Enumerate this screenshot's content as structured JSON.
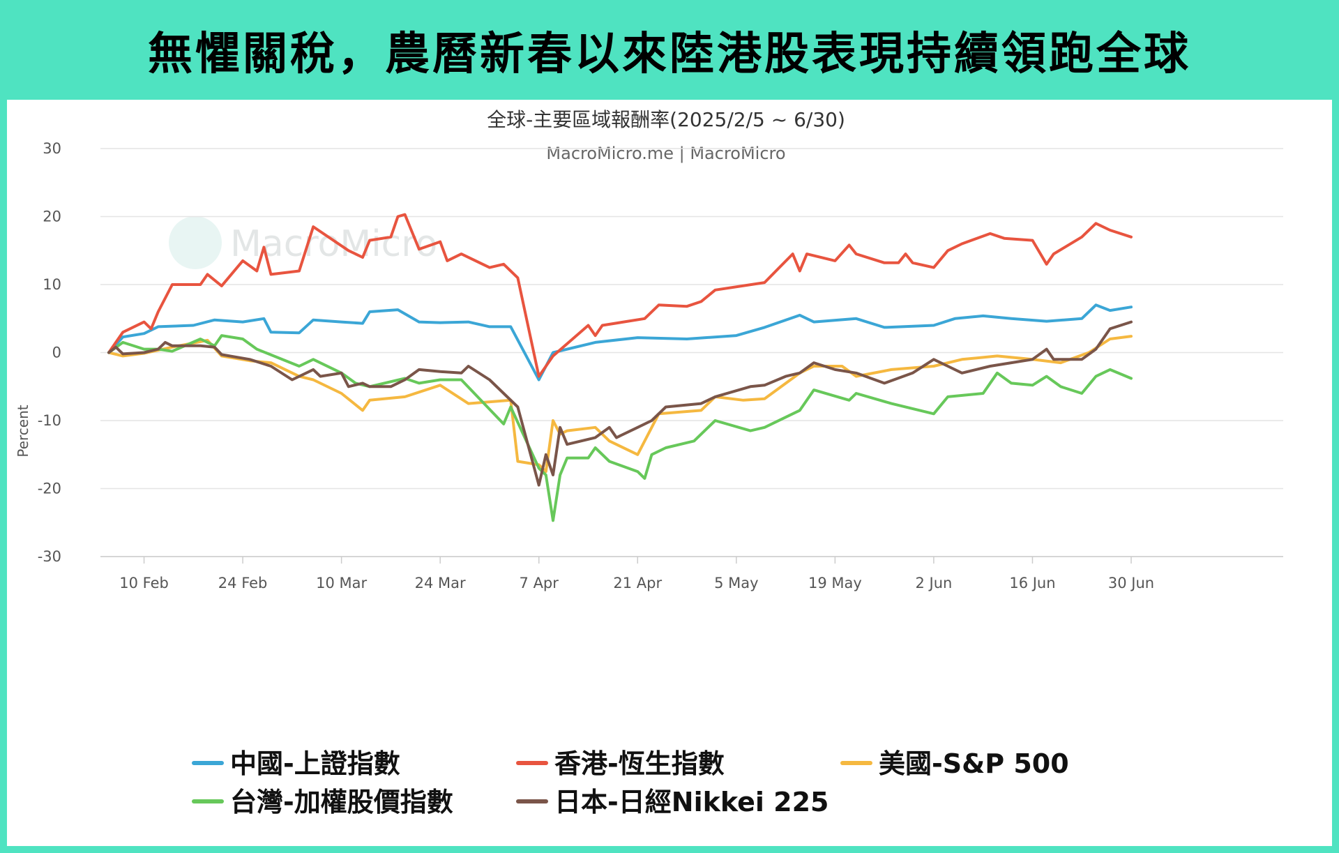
{
  "banner": {
    "title": "無懼關稅，農曆新春以來陸港股表現持續領跑全球"
  },
  "watermark": "MacroMicro",
  "chart_data": {
    "type": "line",
    "title": "全球-主要區域報酬率(2025/2/5 ~ 6/30)",
    "subtitle": "MacroMicro.me | MacroMicro",
    "ylabel": "Percent",
    "xlabel": "",
    "ylim": [
      -30,
      30
    ],
    "yticks": [
      30,
      20,
      10,
      0,
      -10,
      -20,
      -30
    ],
    "xlim": [
      "2025-02-05",
      "2025-06-30"
    ],
    "xticks": [
      {
        "date": "2025-02-10",
        "label": "10 Feb"
      },
      {
        "date": "2025-02-24",
        "label": "24 Feb"
      },
      {
        "date": "2025-03-10",
        "label": "10 Mar"
      },
      {
        "date": "2025-03-24",
        "label": "24 Mar"
      },
      {
        "date": "2025-04-07",
        "label": "7 Apr"
      },
      {
        "date": "2025-04-21",
        "label": "21 Apr"
      },
      {
        "date": "2025-05-05",
        "label": "5 May"
      },
      {
        "date": "2025-05-19",
        "label": "19 May"
      },
      {
        "date": "2025-06-02",
        "label": "2 Jun"
      },
      {
        "date": "2025-06-16",
        "label": "16 Jun"
      },
      {
        "date": "2025-06-30",
        "label": "30 Jun"
      }
    ],
    "grid": true,
    "legend_position": "bottom",
    "series": [
      {
        "name": "中國-上證指數",
        "color": "#3ba6d6",
        "points": [
          [
            "2025-02-05",
            0
          ],
          [
            "2025-02-07",
            2.3
          ],
          [
            "2025-02-10",
            2.8
          ],
          [
            "2025-02-12",
            3.8
          ],
          [
            "2025-02-17",
            4
          ],
          [
            "2025-02-20",
            4.8
          ],
          [
            "2025-02-24",
            4.5
          ],
          [
            "2025-02-27",
            5
          ],
          [
            "2025-02-28",
            3
          ],
          [
            "2025-03-04",
            2.9
          ],
          [
            "2025-03-06",
            4.8
          ],
          [
            "2025-03-10",
            4.5
          ],
          [
            "2025-03-13",
            4.3
          ],
          [
            "2025-03-14",
            6
          ],
          [
            "2025-03-18",
            6.3
          ],
          [
            "2025-03-21",
            4.5
          ],
          [
            "2025-03-24",
            4.4
          ],
          [
            "2025-03-28",
            4.5
          ],
          [
            "2025-03-31",
            3.8
          ],
          [
            "2025-04-03",
            3.8
          ],
          [
            "2025-04-07",
            -4
          ],
          [
            "2025-04-09",
            0
          ],
          [
            "2025-04-15",
            1.5
          ],
          [
            "2025-04-21",
            2.2
          ],
          [
            "2025-04-28",
            2
          ],
          [
            "2025-05-05",
            2.5
          ],
          [
            "2025-05-09",
            3.7
          ],
          [
            "2025-05-14",
            5.5
          ],
          [
            "2025-05-16",
            4.5
          ],
          [
            "2025-05-22",
            5
          ],
          [
            "2025-05-26",
            3.7
          ],
          [
            "2025-06-02",
            4
          ],
          [
            "2025-06-05",
            5
          ],
          [
            "2025-06-09",
            5.4
          ],
          [
            "2025-06-13",
            5
          ],
          [
            "2025-06-18",
            4.6
          ],
          [
            "2025-06-23",
            5
          ],
          [
            "2025-06-25",
            7
          ],
          [
            "2025-06-27",
            6.2
          ],
          [
            "2025-06-30",
            6.7
          ]
        ]
      },
      {
        "name": "香港-恆生指數",
        "color": "#e8543f",
        "points": [
          [
            "2025-02-05",
            0
          ],
          [
            "2025-02-07",
            3
          ],
          [
            "2025-02-10",
            4.5
          ],
          [
            "2025-02-11",
            3.5
          ],
          [
            "2025-02-12",
            6
          ],
          [
            "2025-02-14",
            10
          ],
          [
            "2025-02-18",
            10
          ],
          [
            "2025-02-19",
            11.5
          ],
          [
            "2025-02-21",
            9.8
          ],
          [
            "2025-02-24",
            13.5
          ],
          [
            "2025-02-26",
            12
          ],
          [
            "2025-02-27",
            15.5
          ],
          [
            "2025-02-28",
            11.5
          ],
          [
            "2025-03-04",
            12
          ],
          [
            "2025-03-06",
            18.5
          ],
          [
            "2025-03-11",
            15
          ],
          [
            "2025-03-13",
            14
          ],
          [
            "2025-03-14",
            16.5
          ],
          [
            "2025-03-17",
            17
          ],
          [
            "2025-03-18",
            20
          ],
          [
            "2025-03-19",
            20.3
          ],
          [
            "2025-03-21",
            15.2
          ],
          [
            "2025-03-24",
            16.3
          ],
          [
            "2025-03-25",
            13.5
          ],
          [
            "2025-03-27",
            14.5
          ],
          [
            "2025-03-31",
            12.5
          ],
          [
            "2025-04-02",
            13
          ],
          [
            "2025-04-04",
            11
          ],
          [
            "2025-04-07",
            -3.5
          ],
          [
            "2025-04-09",
            -0.5
          ],
          [
            "2025-04-14",
            4
          ],
          [
            "2025-04-15",
            2.5
          ],
          [
            "2025-04-16",
            4
          ],
          [
            "2025-04-22",
            5
          ],
          [
            "2025-04-24",
            7
          ],
          [
            "2025-04-28",
            6.8
          ],
          [
            "2025-04-30",
            7.5
          ],
          [
            "2025-05-02",
            9.2
          ],
          [
            "2025-05-09",
            10.3
          ],
          [
            "2025-05-13",
            14.5
          ],
          [
            "2025-05-14",
            12
          ],
          [
            "2025-05-15",
            14.5
          ],
          [
            "2025-05-19",
            13.5
          ],
          [
            "2025-05-21",
            15.8
          ],
          [
            "2025-05-22",
            14.5
          ],
          [
            "2025-05-26",
            13.2
          ],
          [
            "2025-05-28",
            13.2
          ],
          [
            "2025-05-29",
            14.5
          ],
          [
            "2025-05-30",
            13.2
          ],
          [
            "2025-06-02",
            12.5
          ],
          [
            "2025-06-04",
            15
          ],
          [
            "2025-06-06",
            16
          ],
          [
            "2025-06-10",
            17.5
          ],
          [
            "2025-06-12",
            16.8
          ],
          [
            "2025-06-16",
            16.5
          ],
          [
            "2025-06-18",
            13
          ],
          [
            "2025-06-19",
            14.5
          ],
          [
            "2025-06-23",
            17
          ],
          [
            "2025-06-25",
            19
          ],
          [
            "2025-06-27",
            18
          ],
          [
            "2025-06-30",
            17
          ]
        ]
      },
      {
        "name": "美國-S&P 500",
        "color": "#f5b840",
        "points": [
          [
            "2025-02-05",
            0
          ],
          [
            "2025-02-07",
            -0.5
          ],
          [
            "2025-02-10",
            -0.1
          ],
          [
            "2025-02-14",
            0.8
          ],
          [
            "2025-02-19",
            1.8
          ],
          [
            "2025-02-21",
            -0.5
          ],
          [
            "2025-02-25",
            -1.2
          ],
          [
            "2025-02-28",
            -1.5
          ],
          [
            "2025-03-04",
            -3.5
          ],
          [
            "2025-03-06",
            -4
          ],
          [
            "2025-03-10",
            -6
          ],
          [
            "2025-03-13",
            -8.5
          ],
          [
            "2025-03-14",
            -7
          ],
          [
            "2025-03-19",
            -6.5
          ],
          [
            "2025-03-24",
            -4.8
          ],
          [
            "2025-03-28",
            -7.5
          ],
          [
            "2025-04-03",
            -7
          ],
          [
            "2025-04-04",
            -16
          ],
          [
            "2025-04-07",
            -16.5
          ],
          [
            "2025-04-08",
            -17.5
          ],
          [
            "2025-04-09",
            -10
          ],
          [
            "2025-04-10",
            -12
          ],
          [
            "2025-04-11",
            -11.5
          ],
          [
            "2025-04-15",
            -11
          ],
          [
            "2025-04-17",
            -13
          ],
          [
            "2025-04-21",
            -15
          ],
          [
            "2025-04-24",
            -9
          ],
          [
            "2025-04-30",
            -8.5
          ],
          [
            "2025-05-02",
            -6.5
          ],
          [
            "2025-05-06",
            -7
          ],
          [
            "2025-05-09",
            -6.8
          ],
          [
            "2025-05-14",
            -3
          ],
          [
            "2025-05-16",
            -2
          ],
          [
            "2025-05-20",
            -2
          ],
          [
            "2025-05-22",
            -3.5
          ],
          [
            "2025-05-27",
            -2.5
          ],
          [
            "2025-06-02",
            -2
          ],
          [
            "2025-06-06",
            -1
          ],
          [
            "2025-06-11",
            -0.5
          ],
          [
            "2025-06-16",
            -1
          ],
          [
            "2025-06-20",
            -1.5
          ],
          [
            "2025-06-24",
            0
          ],
          [
            "2025-06-27",
            2
          ],
          [
            "2025-06-30",
            2.4
          ]
        ]
      },
      {
        "name": "台灣-加權股價指數",
        "color": "#67c85a",
        "points": [
          [
            "2025-02-05",
            0
          ],
          [
            "2025-02-07",
            1.5
          ],
          [
            "2025-02-10",
            0.5
          ],
          [
            "2025-02-12",
            0.5
          ],
          [
            "2025-02-14",
            0.2
          ],
          [
            "2025-02-18",
            2
          ],
          [
            "2025-02-20",
            1
          ],
          [
            "2025-02-21",
            2.5
          ],
          [
            "2025-02-24",
            2
          ],
          [
            "2025-02-26",
            0.5
          ],
          [
            "2025-03-04",
            -2
          ],
          [
            "2025-03-06",
            -1
          ],
          [
            "2025-03-10",
            -3
          ],
          [
            "2025-03-12",
            -4.5
          ],
          [
            "2025-03-14",
            -5
          ],
          [
            "2025-03-19",
            -3.8
          ],
          [
            "2025-03-21",
            -4.5
          ],
          [
            "2025-03-24",
            -4
          ],
          [
            "2025-03-27",
            -4
          ],
          [
            "2025-04-02",
            -10.5
          ],
          [
            "2025-04-03",
            -8
          ],
          [
            "2025-04-07",
            -17
          ],
          [
            "2025-04-08",
            -18
          ],
          [
            "2025-04-09",
            -24.7
          ],
          [
            "2025-04-10",
            -18
          ],
          [
            "2025-04-11",
            -15.5
          ],
          [
            "2025-04-14",
            -15.5
          ],
          [
            "2025-04-15",
            -14
          ],
          [
            "2025-04-17",
            -16
          ],
          [
            "2025-04-21",
            -17.5
          ],
          [
            "2025-04-22",
            -18.5
          ],
          [
            "2025-04-23",
            -15
          ],
          [
            "2025-04-25",
            -14
          ],
          [
            "2025-04-29",
            -13
          ],
          [
            "2025-05-02",
            -10
          ],
          [
            "2025-05-07",
            -11.5
          ],
          [
            "2025-05-09",
            -11
          ],
          [
            "2025-05-14",
            -8.5
          ],
          [
            "2025-05-16",
            -5.5
          ],
          [
            "2025-05-21",
            -7
          ],
          [
            "2025-05-22",
            -6
          ],
          [
            "2025-05-27",
            -7.5
          ],
          [
            "2025-06-02",
            -9
          ],
          [
            "2025-06-04",
            -6.5
          ],
          [
            "2025-06-09",
            -6
          ],
          [
            "2025-06-11",
            -3
          ],
          [
            "2025-06-13",
            -4.5
          ],
          [
            "2025-06-16",
            -4.8
          ],
          [
            "2025-06-18",
            -3.5
          ],
          [
            "2025-06-20",
            -5
          ],
          [
            "2025-06-23",
            -6
          ],
          [
            "2025-06-25",
            -3.5
          ],
          [
            "2025-06-27",
            -2.5
          ],
          [
            "2025-06-30",
            -3.8
          ]
        ]
      },
      {
        "name": "日本-日經Nikkei 225",
        "color": "#7a5549",
        "points": [
          [
            "2025-02-05",
            0
          ],
          [
            "2025-02-06",
            0.8
          ],
          [
            "2025-02-07",
            -0.2
          ],
          [
            "2025-02-10",
            0
          ],
          [
            "2025-02-12",
            0.5
          ],
          [
            "2025-02-13",
            1.5
          ],
          [
            "2025-02-14",
            1
          ],
          [
            "2025-02-18",
            1
          ],
          [
            "2025-02-20",
            0.8
          ],
          [
            "2025-02-21",
            -0.3
          ],
          [
            "2025-02-25",
            -1
          ],
          [
            "2025-02-28",
            -2
          ],
          [
            "2025-03-03",
            -4
          ],
          [
            "2025-03-06",
            -2.5
          ],
          [
            "2025-03-07",
            -3.5
          ],
          [
            "2025-03-10",
            -3
          ],
          [
            "2025-03-11",
            -5
          ],
          [
            "2025-03-13",
            -4.5
          ],
          [
            "2025-03-14",
            -5
          ],
          [
            "2025-03-17",
            -5
          ],
          [
            "2025-03-19",
            -4
          ],
          [
            "2025-03-21",
            -2.5
          ],
          [
            "2025-03-24",
            -2.8
          ],
          [
            "2025-03-27",
            -3
          ],
          [
            "2025-03-28",
            -2
          ],
          [
            "2025-03-31",
            -4
          ],
          [
            "2025-04-04",
            -8
          ],
          [
            "2025-04-07",
            -19.5
          ],
          [
            "2025-04-08",
            -15
          ],
          [
            "2025-04-09",
            -18
          ],
          [
            "2025-04-10",
            -11
          ],
          [
            "2025-04-11",
            -13.5
          ],
          [
            "2025-04-15",
            -12.5
          ],
          [
            "2025-04-17",
            -11
          ],
          [
            "2025-04-18",
            -12.5
          ],
          [
            "2025-04-21",
            -11
          ],
          [
            "2025-04-23",
            -10
          ],
          [
            "2025-04-25",
            -8
          ],
          [
            "2025-04-30",
            -7.5
          ],
          [
            "2025-05-02",
            -6.5
          ],
          [
            "2025-05-07",
            -5
          ],
          [
            "2025-05-09",
            -4.8
          ],
          [
            "2025-05-12",
            -3.5
          ],
          [
            "2025-05-14",
            -3
          ],
          [
            "2025-05-16",
            -1.5
          ],
          [
            "2025-05-19",
            -2.5
          ],
          [
            "2025-05-22",
            -3
          ],
          [
            "2025-05-26",
            -4.5
          ],
          [
            "2025-05-30",
            -3
          ],
          [
            "2025-06-02",
            -1
          ],
          [
            "2025-06-04",
            -2
          ],
          [
            "2025-06-06",
            -3
          ],
          [
            "2025-06-10",
            -2
          ],
          [
            "2025-06-13",
            -1.5
          ],
          [
            "2025-06-16",
            -1
          ],
          [
            "2025-06-18",
            0.5
          ],
          [
            "2025-06-19",
            -1
          ],
          [
            "2025-06-23",
            -1
          ],
          [
            "2025-06-25",
            0.5
          ],
          [
            "2025-06-27",
            3.5
          ],
          [
            "2025-06-30",
            4.5
          ]
        ]
      }
    ]
  }
}
